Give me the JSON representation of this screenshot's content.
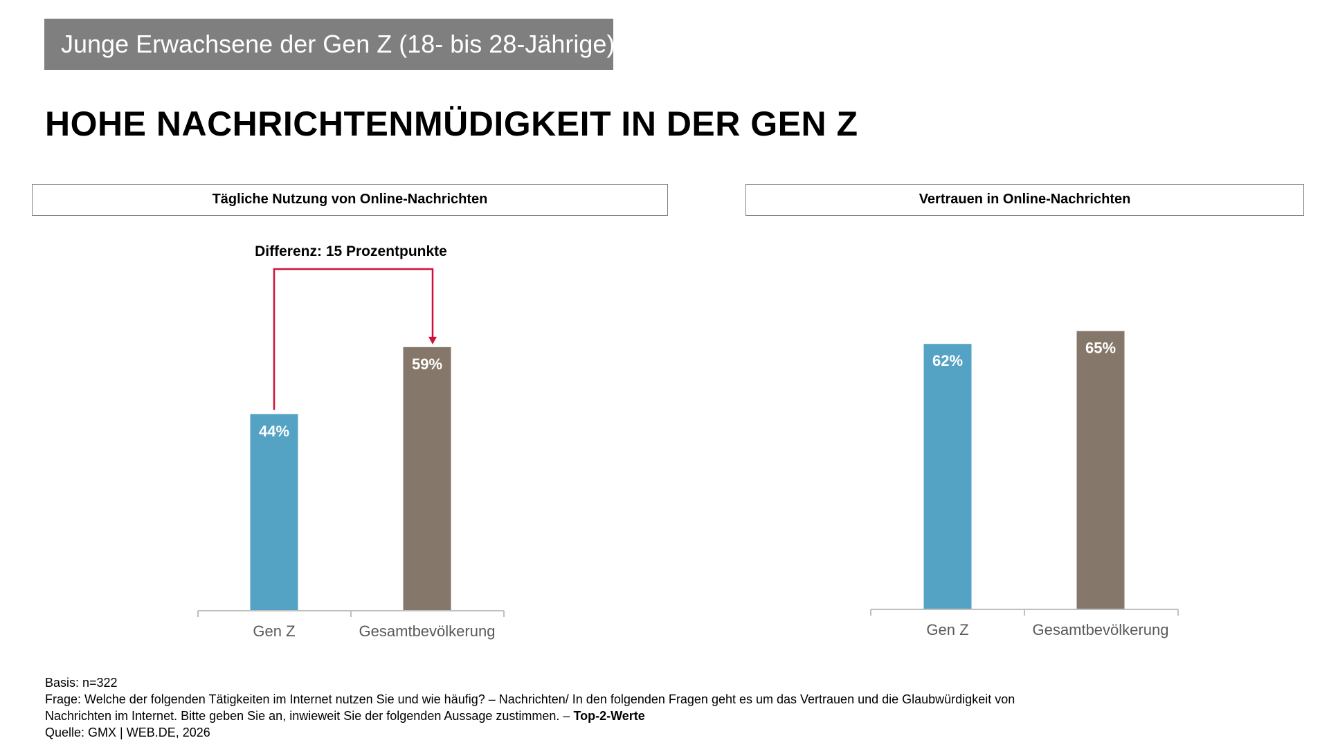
{
  "banner": "Junge Erwachsene der Gen Z (18- bis 28-Jährige)",
  "headline": "HOHE NACHRICHTENMÜDIGKEIT IN DER GEN Z",
  "colors": {
    "gen_z": "#54a3c4",
    "gesamt": "#857769",
    "arrow": "#d0103a",
    "axis": "#bfbfbf"
  },
  "chart_data": [
    {
      "type": "bar",
      "title": "Tägliche Nutzung von Online-Nachrichten",
      "categories": [
        "Gen Z",
        "Gesamtbevölkerung"
      ],
      "values": [
        44,
        59
      ],
      "labels": [
        "44%",
        "59%"
      ],
      "ylim": [
        0,
        100
      ],
      "annotation": "Differenz: 15 Prozentpunkte"
    },
    {
      "type": "bar",
      "title": "Vertrauen in Online-Nachrichten",
      "categories": [
        "Gen Z",
        "Gesamtbevölkerung"
      ],
      "values": [
        62,
        65
      ],
      "labels": [
        "62%",
        "65%"
      ],
      "ylim": [
        0,
        100
      ]
    }
  ],
  "footnote": {
    "basis": "Basis: n=322",
    "frage_line1": "Frage: Welche der folgenden Tätigkeiten im Internet nutzen Sie und wie häufig? – Nachrichten/  In den folgenden Fragen geht es um das Vertrauen und die Glaubwürdigkeit von",
    "frage_line2": "Nachrichten im Internet. Bitte geben Sie an, inwieweit Sie der folgenden Aussage zustimmen. – ",
    "frage_bold": "Top-2-Werte",
    "quelle": "Quelle: GMX | WEB.DE, 2026"
  }
}
